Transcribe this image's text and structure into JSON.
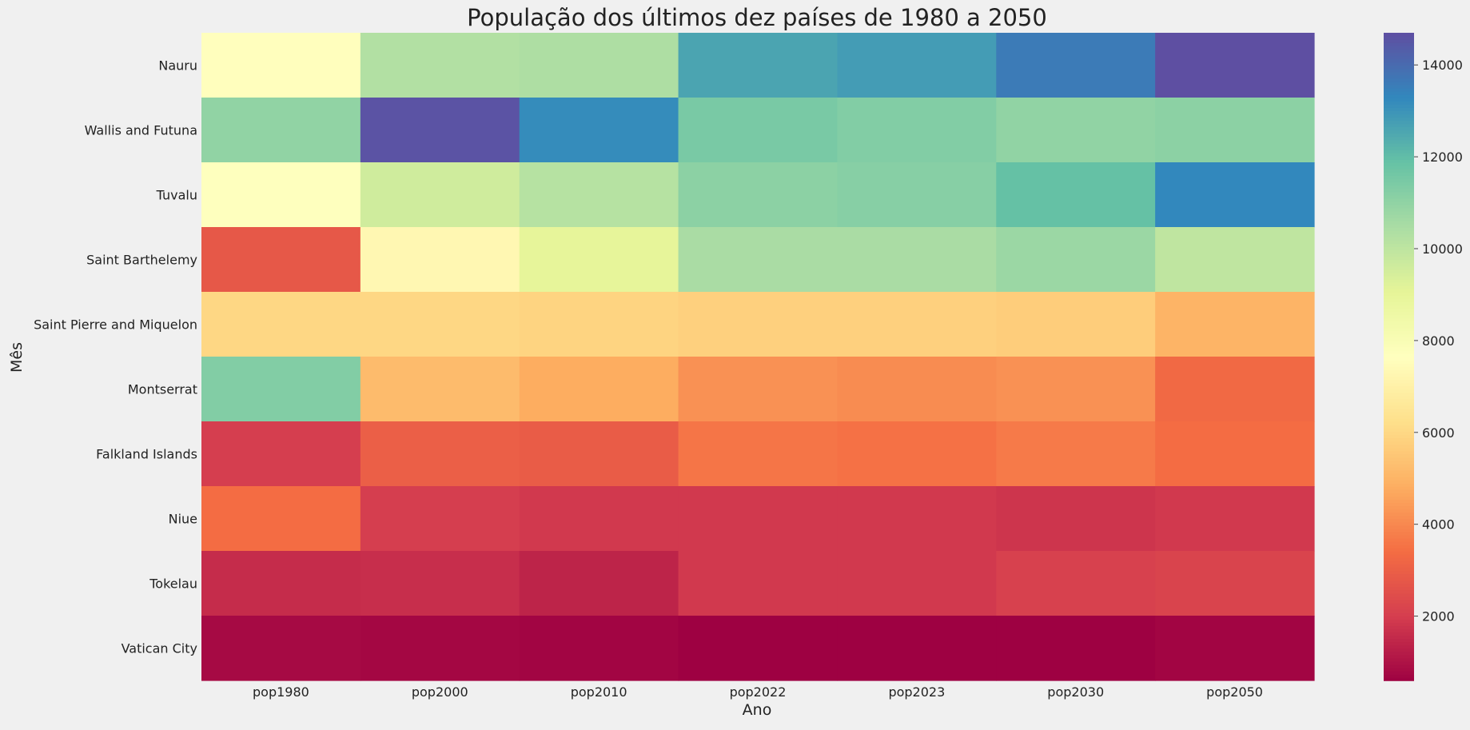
{
  "chart_data": {
    "type": "heatmap",
    "title": "População dos últimos dez países de 1980 a 2050",
    "xlabel": "Ano",
    "ylabel": "Mês",
    "x_categories": [
      "pop1980",
      "pop2000",
      "pop2010",
      "pop2022",
      "pop2023",
      "pop2030",
      "pop2050"
    ],
    "y_categories": [
      "Nauru",
      "Wallis and Futuna",
      "Tuvalu",
      "Saint Barthelemy",
      "Saint Pierre and Miquelon",
      "Montserrat",
      "Falkland Islands",
      "Niue",
      "Tokelau",
      "Vatican City"
    ],
    "values": [
      [
        7600,
        10300,
        10400,
        12600,
        12800,
        13600,
        14700
      ],
      [
        11000,
        14600,
        13200,
        11500,
        11300,
        11000,
        11100
      ],
      [
        7700,
        9600,
        10200,
        11100,
        11200,
        11900,
        13300
      ],
      [
        2800,
        7300,
        9000,
        10500,
        10500,
        10800,
        10000
      ],
      [
        6000,
        6000,
        5900,
        5800,
        5800,
        5700,
        5000
      ],
      [
        11300,
        5200,
        4800,
        4200,
        4100,
        4200,
        3300
      ],
      [
        2000,
        3000,
        2900,
        3600,
        3500,
        3700,
        3400
      ],
      [
        3400,
        2000,
        1900,
        1900,
        1900,
        1800,
        1900
      ],
      [
        1600,
        1650,
        1400,
        1900,
        1900,
        2100,
        2200
      ],
      [
        800,
        750,
        700,
        600,
        600,
        600,
        700
      ]
    ],
    "colorbar": {
      "colormap": "Spectral",
      "vmin": 600,
      "vmax": 14700,
      "ticks": [
        "2000",
        "4000",
        "6000",
        "8000",
        "10000",
        "12000",
        "14000"
      ]
    },
    "grid": false
  }
}
